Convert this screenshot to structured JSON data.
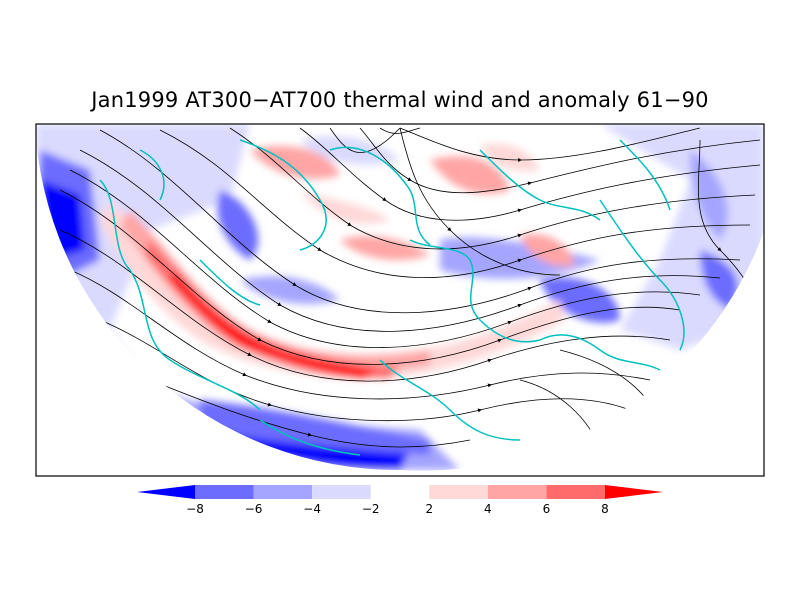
{
  "title": "Jan1999 AT300−AT700 thermal wind and anomaly 61−90",
  "chart_data": {
    "type": "heatmap",
    "title": "Jan1999 AT300−AT700 thermal wind and anomaly 61−90",
    "projection": "polar-stereographic",
    "overlays": [
      "streamlines",
      "coastlines"
    ],
    "legend": {
      "position": "bottom",
      "tick_labels": [
        "−8",
        "−6",
        "−4",
        "−2",
        "2",
        "4",
        "6",
        "8"
      ],
      "levels": [
        -8,
        -6,
        -4,
        -2,
        2,
        4,
        6,
        8
      ],
      "colors": [
        "#0000ff",
        "#6c6cff",
        "#a5a5ff",
        "#dadaff",
        "#ffffff",
        "#ffd8d8",
        "#ffa5a5",
        "#ff6a6a",
        "#ff0000"
      ]
    },
    "anomaly_regions": [
      {
        "sign": "positive",
        "max_level": 8,
        "location": "central jet band"
      },
      {
        "sign": "negative",
        "max_level": -8,
        "location": "southern rim"
      },
      {
        "sign": "negative",
        "max_level": -8,
        "location": "western edge"
      },
      {
        "sign": "positive",
        "max_level": 4,
        "location": "northern arctic"
      },
      {
        "sign": "positive",
        "max_level": 4,
        "location": "north-east"
      },
      {
        "sign": "negative",
        "max_level": -4,
        "location": "eastern rim"
      }
    ]
  }
}
